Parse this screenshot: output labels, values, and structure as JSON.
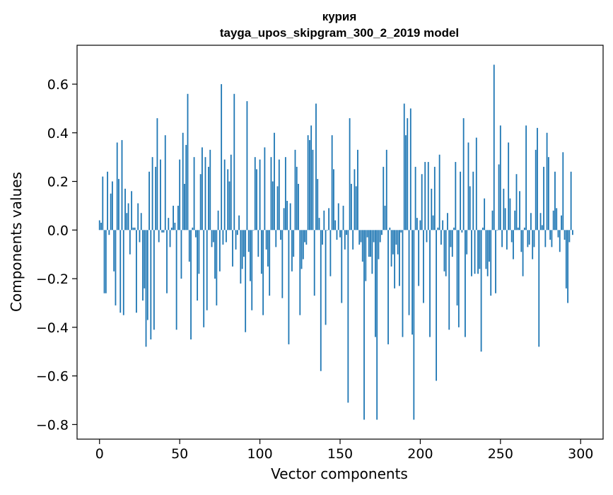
{
  "chart_data": {
    "type": "bar",
    "title": "курия",
    "subtitle": "tayga_upos_skipgram_300_2_2019 model",
    "xlabel": "Vector components",
    "ylabel": "Components values",
    "xlim": [
      -14,
      314
    ],
    "ylim": [
      -0.86,
      0.76
    ],
    "xticks": [
      0,
      50,
      100,
      150,
      200,
      250,
      300
    ],
    "xtick_labels": [
      "0",
      "50",
      "100",
      "150",
      "200",
      "250",
      "300"
    ],
    "yticks": [
      -0.8,
      -0.6,
      -0.4,
      -0.2,
      0.0,
      0.2,
      0.4,
      0.6
    ],
    "ytick_labels": [
      "−0.8",
      "−0.6",
      "−0.4",
      "−0.2",
      "0.0",
      "0.2",
      "0.4",
      "0.6"
    ],
    "grid": false,
    "bar_color": "#1f77b4",
    "values": [
      0.04,
      0.03,
      0.22,
      -0.26,
      -0.26,
      0.24,
      -0.02,
      0.15,
      0.2,
      -0.17,
      -0.31,
      0.36,
      0.21,
      -0.34,
      0.37,
      -0.35,
      0.17,
      0.07,
      0.11,
      -0.1,
      0.16,
      0.01,
      0.01,
      -0.34,
      0.11,
      -0.05,
      0.07,
      -0.29,
      -0.24,
      -0.48,
      -0.37,
      0.24,
      -0.45,
      0.3,
      -0.41,
      0.26,
      0.46,
      -0.05,
      0.29,
      -0.01,
      -0.01,
      0.39,
      -0.26,
      0.05,
      -0.07,
      0.01,
      0.1,
      0.03,
      -0.41,
      0.1,
      0.29,
      -0.2,
      0.4,
      0.19,
      0.35,
      0.56,
      -0.13,
      -0.45,
      0.01,
      0.3,
      -0.03,
      -0.29,
      -0.18,
      0.23,
      0.34,
      -0.4,
      0.3,
      -0.33,
      0.26,
      0.33,
      -0.07,
      -0.05,
      -0.2,
      -0.31,
      0.08,
      -0.17,
      0.6,
      -0.06,
      0.29,
      -0.05,
      0.25,
      0.2,
      0.31,
      -0.15,
      0.56,
      -0.08,
      -0.02,
      0.06,
      -0.22,
      -0.16,
      -0.11,
      -0.42,
      0.53,
      -0.09,
      -0.21,
      -0.33,
      0.0,
      0.3,
      0.25,
      -0.11,
      0.29,
      -0.18,
      -0.35,
      0.34,
      -0.08,
      -0.15,
      -0.27,
      0.3,
      0.2,
      0.4,
      -0.07,
      0.18,
      0.29,
      -0.04,
      -0.28,
      0.09,
      0.3,
      0.12,
      -0.47,
      0.11,
      -0.17,
      -0.11,
      0.33,
      0.26,
      0.19,
      -0.35,
      -0.16,
      -0.12,
      -0.05,
      -0.06,
      0.39,
      0.37,
      0.43,
      0.33,
      -0.27,
      0.52,
      0.21,
      0.05,
      -0.58,
      -0.06,
      0.08,
      -0.39,
      0.0,
      0.09,
      -0.19,
      0.39,
      0.25,
      0.04,
      -0.04,
      0.11,
      -0.03,
      -0.3,
      0.1,
      -0.08,
      -0.02,
      -0.71,
      0.46,
      0.19,
      -0.08,
      0.25,
      0.18,
      0.33,
      -0.06,
      -0.05,
      -0.13,
      -0.78,
      -0.21,
      -0.03,
      -0.11,
      -0.11,
      -0.18,
      -0.05,
      -0.44,
      -0.78,
      -0.12,
      -0.05,
      -0.02,
      0.26,
      0.1,
      0.33,
      -0.47,
      0.01,
      -0.15,
      -0.1,
      -0.24,
      -0.06,
      -0.1,
      -0.23,
      -0.01,
      -0.44,
      0.52,
      0.39,
      0.46,
      -0.35,
      0.5,
      -0.43,
      -0.78,
      0.26,
      0.05,
      -0.23,
      0.04,
      0.23,
      -0.3,
      0.28,
      -0.05,
      0.28,
      -0.44,
      0.17,
      0.06,
      0.26,
      -0.62,
      0.01,
      0.31,
      -0.06,
      0.04,
      -0.17,
      -0.19,
      0.07,
      -0.41,
      -0.07,
      -0.11,
      0.01,
      0.28,
      -0.31,
      -0.4,
      0.24,
      -0.01,
      0.46,
      -0.44,
      -0.1,
      0.36,
      0.18,
      -0.19,
      0.24,
      -0.18,
      0.38,
      -0.18,
      -0.16,
      -0.5,
      0.01,
      0.13,
      -0.16,
      -0.19,
      -0.13,
      -0.27,
      0.08,
      0.68,
      -0.26,
      0.0,
      0.27,
      0.43,
      -0.07,
      0.17,
      0.09,
      -0.08,
      0.36,
      0.13,
      -0.05,
      -0.12,
      0.08,
      0.23,
      0.01,
      0.16,
      -0.09,
      -0.19,
      0.01,
      0.43,
      -0.07,
      -0.06,
      0.07,
      -0.12,
      -0.07,
      0.33,
      0.42,
      -0.48,
      0.07,
      0.02,
      0.26,
      -0.07,
      0.4,
      0.3,
      -0.04,
      -0.07,
      0.08,
      0.24,
      0.09,
      -0.03,
      -0.09,
      0.06,
      0.32,
      -0.04,
      -0.24,
      -0.3,
      -0.05,
      0.24,
      -0.02
    ]
  }
}
